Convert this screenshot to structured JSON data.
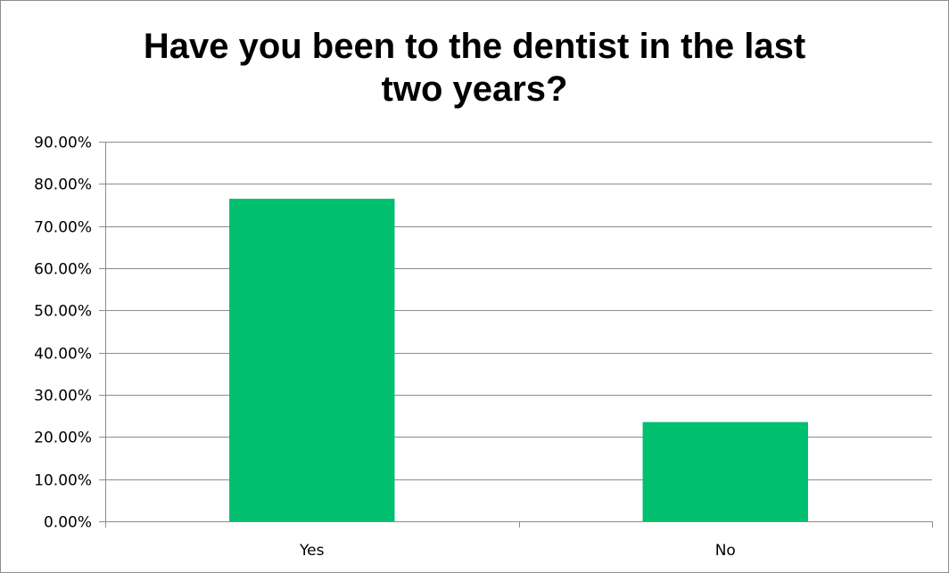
{
  "chart_data": {
    "type": "bar",
    "title_lines": [
      "Have you been to the dentist in the last",
      "two years?"
    ],
    "categories": [
      "Yes",
      "No"
    ],
    "values": [
      76.47,
      23.53
    ],
    "ylim": [
      0,
      90
    ],
    "yticks": [
      0,
      10,
      20,
      30,
      40,
      50,
      60,
      70,
      80,
      90
    ],
    "ytick_labels": [
      "0.00%",
      "10.00%",
      "20.00%",
      "30.00%",
      "40.00%",
      "50.00%",
      "60.00%",
      "70.00%",
      "80.00%",
      "90.00%"
    ],
    "grid": true,
    "legend": "none",
    "bar_color": "#00bf6f"
  }
}
